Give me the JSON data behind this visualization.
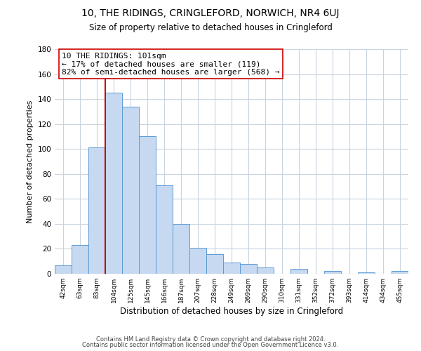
{
  "title": "10, THE RIDINGS, CRINGLEFORD, NORWICH, NR4 6UJ",
  "subtitle": "Size of property relative to detached houses in Cringleford",
  "xlabel": "Distribution of detached houses by size in Cringleford",
  "ylabel": "Number of detached properties",
  "bar_labels": [
    "42sqm",
    "63sqm",
    "83sqm",
    "104sqm",
    "125sqm",
    "145sqm",
    "166sqm",
    "187sqm",
    "207sqm",
    "228sqm",
    "249sqm",
    "269sqm",
    "290sqm",
    "310sqm",
    "331sqm",
    "352sqm",
    "372sqm",
    "393sqm",
    "414sqm",
    "434sqm",
    "455sqm"
  ],
  "bar_values": [
    7,
    23,
    101,
    145,
    134,
    110,
    71,
    40,
    21,
    16,
    9,
    8,
    5,
    0,
    4,
    0,
    2,
    0,
    1,
    0,
    2
  ],
  "bar_color": "#c6d9f0",
  "bar_edge_color": "#5b9bd5",
  "vline_x": 3,
  "vline_color": "#cc0000",
  "annotation_title": "10 THE RIDINGS: 101sqm",
  "annotation_line1": "← 17% of detached houses are smaller (119)",
  "annotation_line2": "82% of semi-detached houses are larger (568) →",
  "annotation_box_color": "#ffffff",
  "annotation_box_edge": "#cc0000",
  "ylim": [
    0,
    180
  ],
  "yticks": [
    0,
    20,
    40,
    60,
    80,
    100,
    120,
    140,
    160,
    180
  ],
  "footer1": "Contains HM Land Registry data © Crown copyright and database right 2024.",
  "footer2": "Contains public sector information licensed under the Open Government Licence v3.0.",
  "background_color": "#ffffff",
  "grid_color": "#c8d4e0"
}
